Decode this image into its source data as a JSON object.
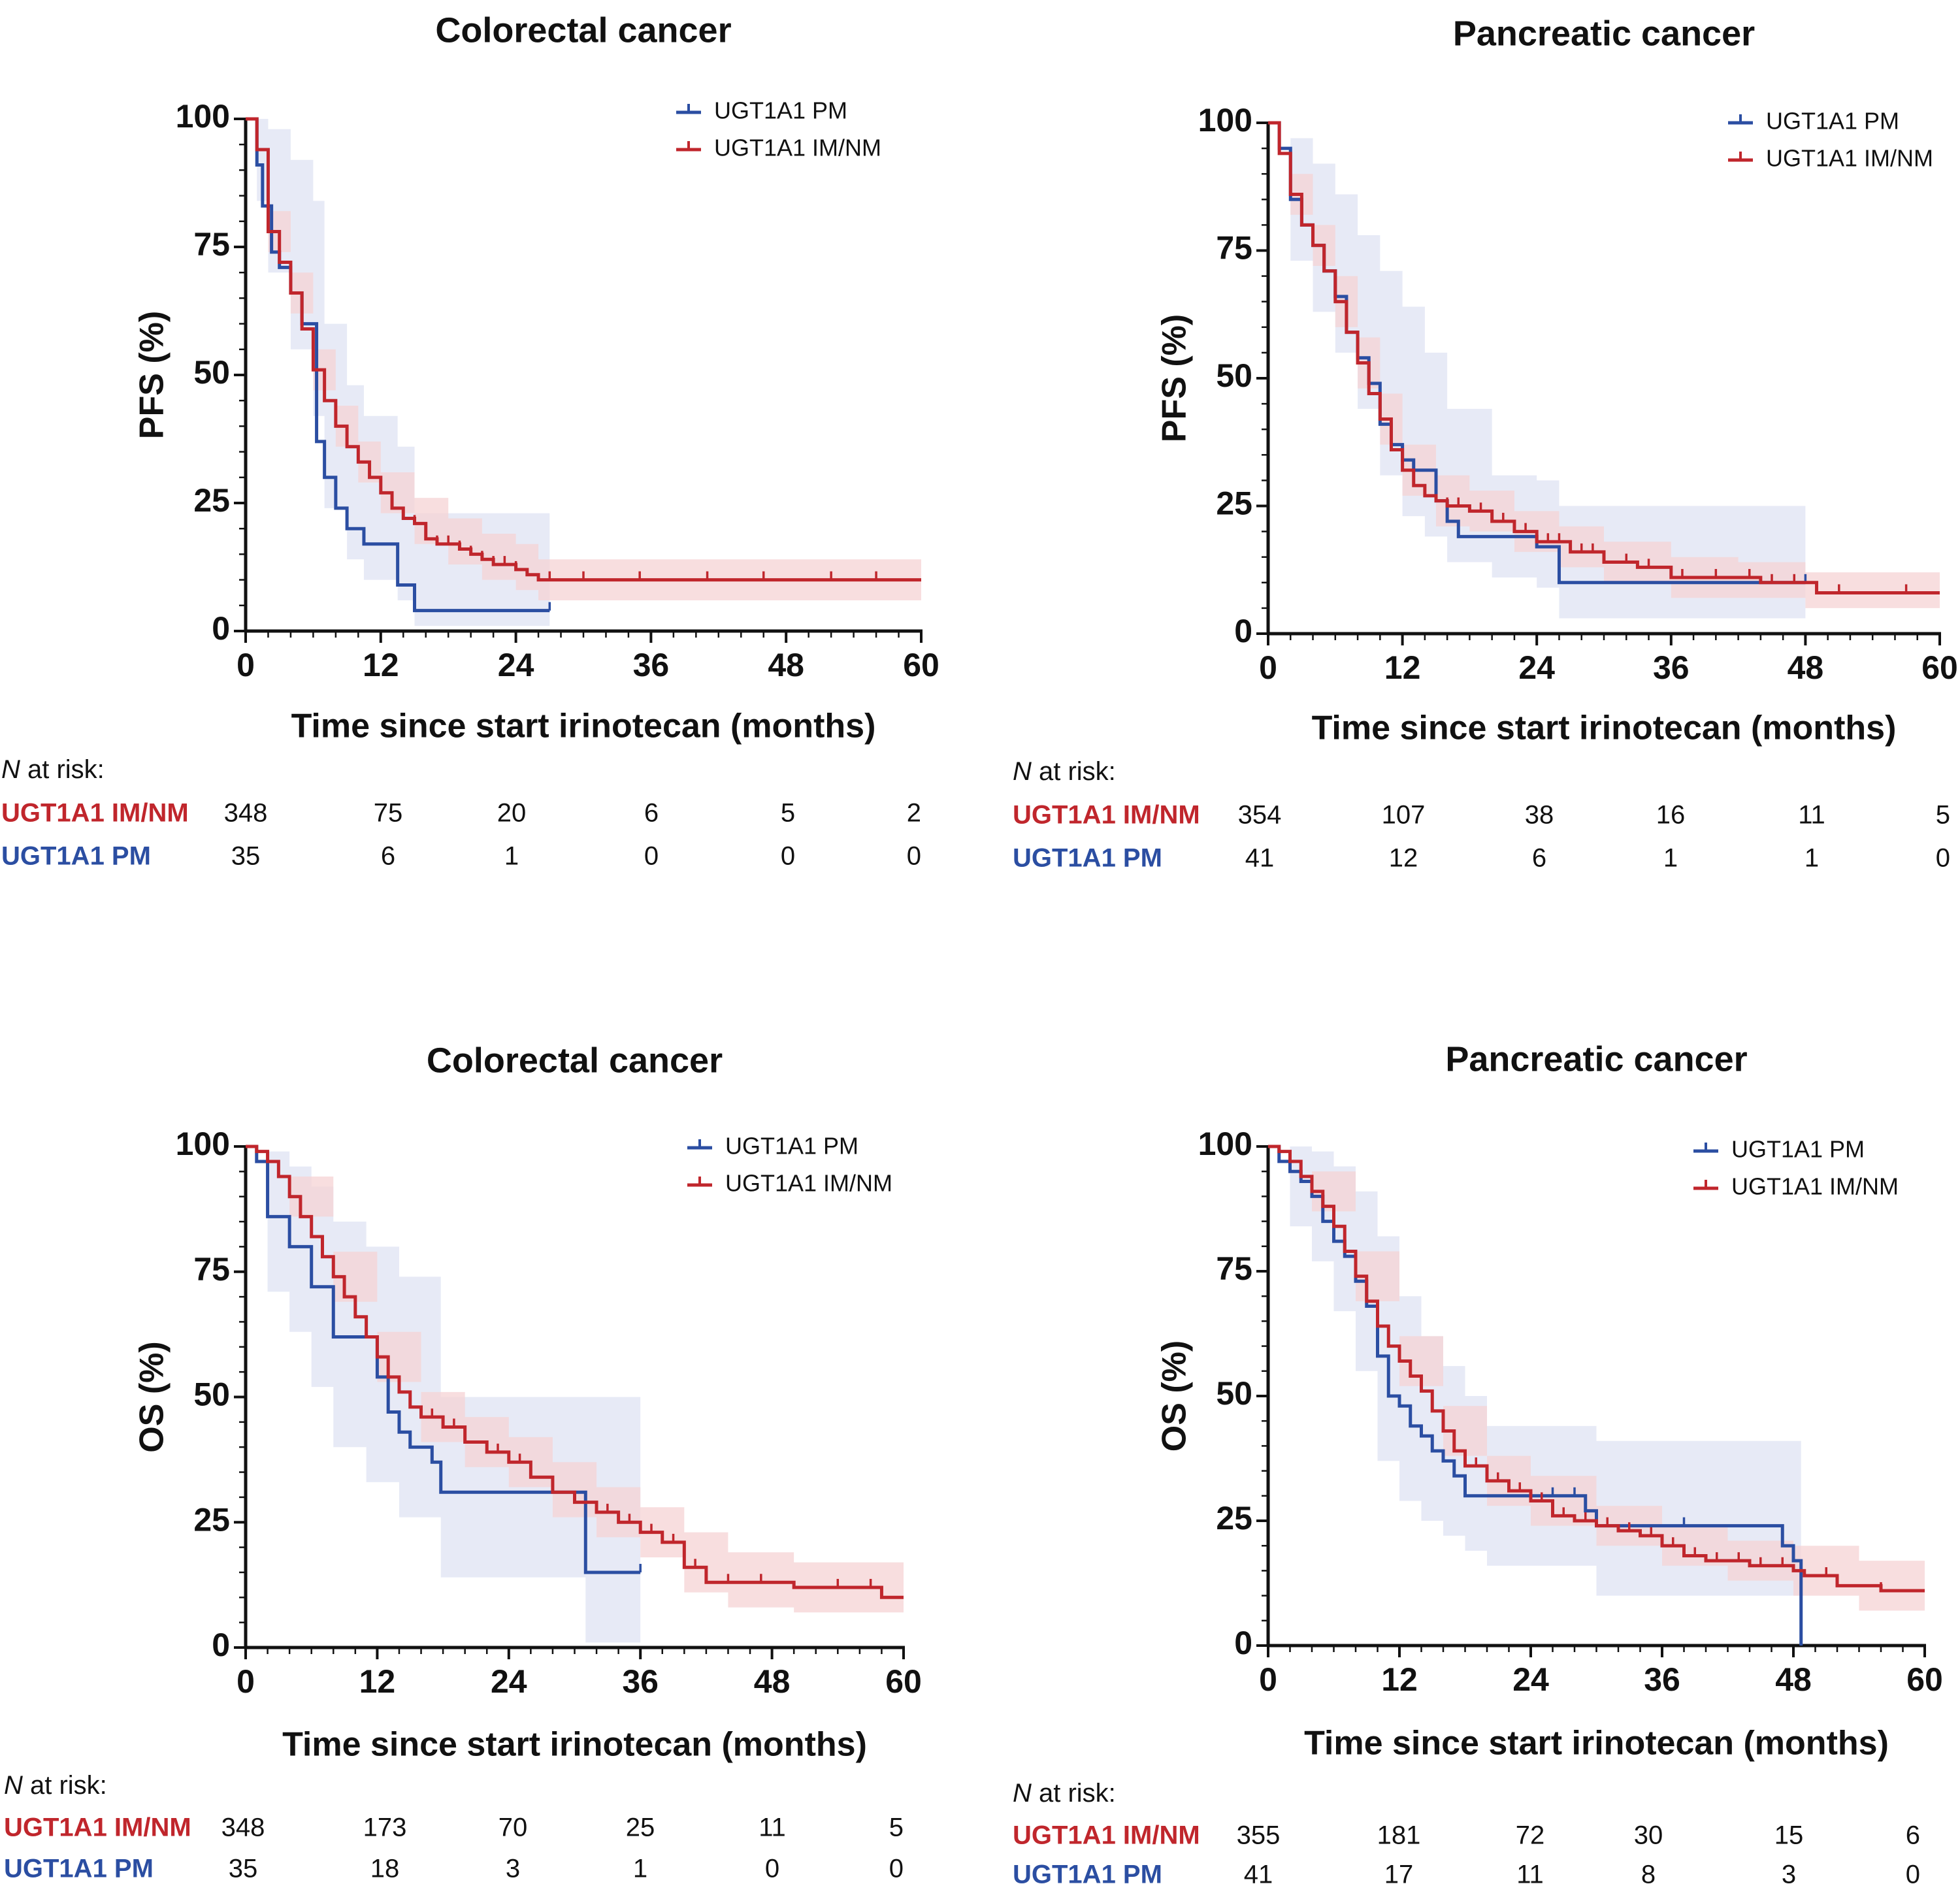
{
  "colors": {
    "pm": "#2b4ea2",
    "imnm": "#c0262c",
    "pm_ci": "#dfe3f3",
    "imnm_ci": "#f6d3d4"
  },
  "chart_data": [
    {
      "type": "line",
      "id": "crc-pfs",
      "title": "Colorectal cancer",
      "xlabel": "Time since start irinotecan (months)",
      "ylabel": "PFS (%)",
      "xlim": [
        0,
        60
      ],
      "ylim": [
        0,
        100
      ],
      "xticks": [
        0,
        12,
        24,
        36,
        48,
        60
      ],
      "yticks": [
        0,
        25,
        50,
        75,
        100
      ],
      "legend_position": "top-right",
      "risk_header_italic": "N",
      "risk_header_rest": " at risk:",
      "series": [
        {
          "name": "UGT1A1 PM",
          "color_key": "pm",
          "x": [
            0,
            1,
            1.5,
            2.3,
            3,
            4,
            5,
            6.3,
            7,
            8,
            9,
            10.5,
            13.5,
            15,
            27
          ],
          "y": [
            100,
            91,
            83,
            74,
            71,
            66,
            60,
            37,
            30,
            24,
            20,
            17,
            9,
            4,
            4
          ],
          "ci_x": [
            0,
            1,
            2,
            4,
            6,
            7,
            9,
            10.5,
            13.5,
            15,
            27
          ],
          "ci_upper": [
            100,
            100,
            98,
            92,
            84,
            60,
            48,
            42,
            36,
            23,
            17
          ],
          "ci_lower": [
            100,
            84,
            70,
            55,
            42,
            24,
            14,
            10,
            6,
            1,
            1
          ],
          "censor_x": [
            27
          ],
          "at_risk": [
            35,
            6,
            1,
            0,
            0,
            0
          ]
        },
        {
          "name": "UGT1A1 IM/NM",
          "color_key": "imnm",
          "x": [
            0,
            1,
            2,
            3,
            4,
            5,
            6,
            7,
            8,
            9,
            10,
            11,
            12,
            13,
            14,
            15,
            16,
            17,
            18,
            19,
            20,
            21,
            22,
            23,
            24,
            25,
            26,
            27,
            60
          ],
          "y": [
            100,
            94,
            78,
            72,
            66,
            59,
            51,
            45,
            40,
            36,
            33,
            30,
            27,
            24,
            22,
            21,
            18,
            17,
            17,
            16,
            15,
            14,
            13,
            13,
            12,
            11,
            10,
            10,
            10
          ],
          "ci_x": [
            0,
            2,
            4,
            6,
            8,
            10,
            12,
            15,
            18,
            21,
            24,
            26,
            60
          ],
          "ci_upper": [
            100,
            82,
            70,
            55,
            44,
            37,
            31,
            26,
            22,
            19,
            17,
            14,
            14
          ],
          "ci_lower": [
            100,
            74,
            62,
            47,
            36,
            29,
            23,
            17,
            13,
            10,
            8,
            6,
            6
          ],
          "censor_x": [
            14,
            15,
            16,
            17,
            18,
            19,
            20,
            21,
            22,
            23,
            24,
            27,
            30,
            35,
            41,
            46,
            52,
            56
          ],
          "at_risk": [
            348,
            75,
            20,
            6,
            5,
            2
          ]
        }
      ]
    },
    {
      "type": "line",
      "id": "pc-pfs",
      "title": "Pancreatic cancer",
      "xlabel": "Time since start irinotecan (months)",
      "ylabel": "PFS (%)",
      "xlim": [
        0,
        60
      ],
      "ylim": [
        0,
        100
      ],
      "xticks": [
        0,
        12,
        24,
        36,
        48,
        60
      ],
      "yticks": [
        0,
        25,
        50,
        75,
        100
      ],
      "legend_position": "top-right",
      "risk_header_italic": "N",
      "risk_header_rest": " at risk:",
      "series": [
        {
          "name": "UGT1A1 PM",
          "color_key": "pm",
          "x": [
            0,
            1,
            2,
            3,
            4,
            5,
            6,
            7,
            8,
            9,
            10,
            11,
            12,
            13,
            15,
            16,
            17,
            24,
            26,
            48
          ],
          "y": [
            100,
            95,
            85,
            80,
            76,
            71,
            66,
            59,
            54,
            49,
            41,
            37,
            34,
            32,
            26,
            22,
            19,
            17,
            10,
            10
          ],
          "ci_x": [
            0,
            2,
            4,
            6,
            8,
            10,
            12,
            14,
            16,
            20,
            24,
            26,
            48
          ],
          "ci_upper": [
            100,
            97,
            92,
            86,
            78,
            71,
            64,
            55,
            44,
            31,
            30,
            25,
            25
          ],
          "ci_lower": [
            100,
            73,
            63,
            55,
            44,
            31,
            23,
            19,
            14,
            11,
            9,
            3,
            3
          ],
          "censor_x": [
            24,
            48
          ],
          "at_risk": [
            41,
            12,
            6,
            1,
            1,
            0
          ]
        },
        {
          "name": "UGT1A1 IM/NM",
          "color_key": "imnm",
          "x": [
            0,
            1,
            2,
            3,
            4,
            5,
            6,
            7,
            8,
            9,
            10,
            11,
            12,
            13,
            14,
            15,
            16,
            18,
            20,
            22,
            24,
            27,
            30,
            33,
            36,
            40,
            44,
            48,
            49,
            60
          ],
          "y": [
            100,
            94,
            86,
            80,
            76,
            71,
            65,
            59,
            53,
            47,
            42,
            36,
            32,
            29,
            27,
            26,
            25,
            24,
            22,
            20,
            18,
            16,
            14,
            13,
            11,
            11,
            10,
            10,
            8,
            8
          ],
          "ci_x": [
            0,
            2,
            4,
            6,
            8,
            10,
            12,
            15,
            18,
            22,
            26,
            30,
            36,
            42,
            48,
            60
          ],
          "ci_upper": [
            100,
            90,
            80,
            70,
            58,
            47,
            37,
            31,
            28,
            24,
            21,
            18,
            15,
            14,
            12,
            11
          ],
          "ci_lower": [
            100,
            82,
            72,
            60,
            48,
            37,
            27,
            21,
            20,
            16,
            13,
            10,
            7,
            7,
            5,
            4
          ],
          "censor_x": [
            14,
            16,
            17,
            19,
            20,
            21,
            23,
            25,
            26,
            28,
            29,
            32,
            34,
            37,
            40,
            43,
            45,
            47,
            51,
            57
          ],
          "at_risk": [
            354,
            107,
            38,
            16,
            11,
            5
          ]
        }
      ]
    },
    {
      "type": "line",
      "id": "crc-os",
      "title": "Colorectal cancer",
      "xlabel": "Time since start irinotecan (months)",
      "ylabel": "OS (%)",
      "xlim": [
        0,
        60
      ],
      "ylim": [
        0,
        100
      ],
      "xticks": [
        0,
        12,
        24,
        36,
        48,
        60
      ],
      "yticks": [
        0,
        25,
        50,
        75,
        100
      ],
      "legend_position": "top-right",
      "risk_header_italic": "N",
      "risk_header_rest": " at risk:",
      "series": [
        {
          "name": "UGT1A1 PM",
          "color_key": "pm",
          "x": [
            0,
            1,
            2,
            4,
            6,
            8,
            11,
            12,
            13,
            14,
            15,
            17,
            17.8,
            31,
            36
          ],
          "y": [
            100,
            97,
            86,
            80,
            72,
            62,
            62,
            54,
            47,
            43,
            40,
            37,
            31,
            15,
            15
          ],
          "ci_x": [
            0,
            2,
            4,
            6,
            8,
            11,
            14,
            17.8,
            31,
            36
          ],
          "ci_upper": [
            100,
            99,
            96,
            92,
            85,
            80,
            74,
            50,
            50,
            43
          ],
          "ci_lower": [
            100,
            71,
            63,
            52,
            40,
            33,
            26,
            14,
            1,
            1
          ],
          "censor_x": [
            36
          ],
          "at_risk": [
            35,
            18,
            3,
            1,
            0,
            0
          ]
        },
        {
          "name": "UGT1A1 IM/NM",
          "color_key": "imnm",
          "x": [
            0,
            1,
            2,
            3,
            4,
            5,
            6,
            7,
            8,
            9,
            10,
            11,
            12,
            13,
            14,
            15,
            16,
            18,
            20,
            22,
            24,
            26,
            28,
            30,
            32,
            34,
            36,
            38,
            40,
            42,
            46,
            50,
            58,
            60
          ],
          "y": [
            100,
            99,
            97,
            94,
            90,
            86,
            82,
            78,
            74,
            70,
            66,
            62,
            58,
            54,
            51,
            48,
            46,
            44,
            41,
            39,
            37,
            34,
            31,
            29,
            27,
            25,
            23,
            21,
            16,
            13,
            13,
            12,
            10,
            10
          ],
          "ci_x": [
            0,
            4,
            8,
            12,
            16,
            20,
            24,
            28,
            32,
            36,
            40,
            44,
            50,
            60
          ],
          "ci_upper": [
            100,
            94,
            79,
            63,
            51,
            46,
            42,
            37,
            32,
            28,
            23,
            19,
            17,
            17
          ],
          "ci_lower": [
            100,
            86,
            69,
            53,
            41,
            36,
            32,
            26,
            22,
            18,
            11,
            8,
            7,
            5
          ],
          "censor_x": [
            13,
            14,
            16,
            17,
            18,
            19,
            20,
            22,
            23,
            25,
            26,
            28,
            30,
            32,
            33,
            35,
            37,
            39,
            41,
            44,
            47,
            54,
            57
          ],
          "at_risk": [
            348,
            173,
            70,
            25,
            11,
            5
          ]
        }
      ]
    },
    {
      "type": "line",
      "id": "pc-os",
      "title": "Pancreatic cancer",
      "xlabel": "Time since start irinotecan (months)",
      "ylabel": "OS (%)",
      "xlim": [
        0,
        60
      ],
      "ylim": [
        0,
        100
      ],
      "xticks": [
        0,
        12,
        24,
        36,
        48,
        60
      ],
      "yticks": [
        0,
        25,
        50,
        75,
        100
      ],
      "legend_position": "top-right",
      "risk_header_italic": "N",
      "risk_header_rest": " at risk:",
      "series": [
        {
          "name": "UGT1A1 PM",
          "color_key": "pm",
          "x": [
            0,
            1,
            2,
            3,
            4,
            5,
            6,
            7,
            8,
            9,
            10,
            11,
            12,
            13,
            14,
            15,
            16,
            17,
            18,
            29,
            30,
            46,
            47,
            48,
            48.7
          ],
          "y": [
            100,
            97,
            95,
            93,
            90,
            85,
            81,
            78,
            73,
            68,
            58,
            50,
            48,
            44,
            42,
            39,
            37,
            34,
            30,
            27,
            24,
            24,
            20,
            17,
            0
          ],
          "ci_x": [
            0,
            2,
            4,
            6,
            8,
            10,
            12,
            14,
            16,
            18,
            20,
            29,
            30,
            48,
            48.7
          ],
          "ci_upper": [
            100,
            100,
            99,
            96,
            91,
            82,
            70,
            62,
            56,
            50,
            44,
            44,
            41,
            41,
            1
          ],
          "ci_lower": [
            100,
            84,
            77,
            67,
            55,
            37,
            29,
            25,
            22,
            19,
            16,
            16,
            10,
            10,
            0
          ],
          "censor_x": [
            26,
            28,
            38
          ],
          "at_risk": [
            41,
            17,
            11,
            8,
            3,
            0
          ]
        },
        {
          "name": "UGT1A1 IM/NM",
          "color_key": "imnm",
          "x": [
            0,
            1,
            2,
            3,
            4,
            5,
            6,
            7,
            8,
            9,
            10,
            11,
            12,
            13,
            14,
            15,
            16,
            17,
            18,
            20,
            22,
            24,
            26,
            28,
            30,
            32,
            34,
            36,
            38,
            40,
            44,
            48,
            49,
            52,
            56,
            60
          ],
          "y": [
            100,
            99,
            97,
            94,
            91,
            88,
            84,
            79,
            74,
            69,
            64,
            60,
            57,
            54,
            51,
            47,
            43,
            39,
            36,
            33,
            31,
            29,
            26,
            25,
            24,
            23,
            22,
            20,
            18,
            17,
            16,
            15,
            14,
            12,
            11,
            11
          ],
          "ci_x": [
            0,
            4,
            8,
            12,
            16,
            20,
            24,
            30,
            36,
            42,
            48,
            54,
            60
          ],
          "ci_upper": [
            100,
            95,
            79,
            62,
            48,
            38,
            34,
            28,
            24,
            21,
            20,
            17,
            17
          ],
          "ci_lower": [
            100,
            87,
            69,
            52,
            38,
            28,
            24,
            20,
            16,
            13,
            10,
            7,
            7
          ],
          "censor_x": [
            15,
            17,
            19,
            21,
            23,
            25,
            27,
            29,
            31,
            33,
            35,
            37,
            39,
            41,
            43,
            45,
            47,
            51,
            56
          ],
          "at_risk": [
            355,
            181,
            72,
            30,
            15,
            6
          ]
        }
      ]
    }
  ]
}
